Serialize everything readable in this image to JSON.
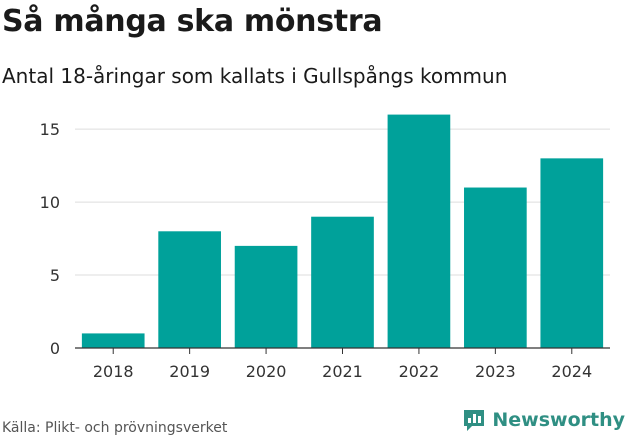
{
  "header": {
    "title": "Så många ska mönstra",
    "subtitle": "Antal 18-åringar som kallats i Gullspångs kommun"
  },
  "footer": {
    "source": "Källa: Plikt- och prövningsverket",
    "brand": "Newsworthy"
  },
  "colors": {
    "bar": "#00a19a",
    "grid": "#dddddd",
    "axis": "#333333",
    "brand": "#2f8f83"
  },
  "icons": {
    "brand_icon": "bar-chart-speech-bubble-icon"
  },
  "chart_data": {
    "type": "bar",
    "categories": [
      "2018",
      "2019",
      "2020",
      "2021",
      "2022",
      "2023",
      "2024"
    ],
    "values": [
      1,
      8,
      7,
      9,
      16,
      11,
      13
    ],
    "ylim": [
      0,
      17
    ],
    "yticks": [
      0,
      5,
      10,
      15
    ],
    "grid": true,
    "xlabel": "",
    "ylabel": ""
  }
}
